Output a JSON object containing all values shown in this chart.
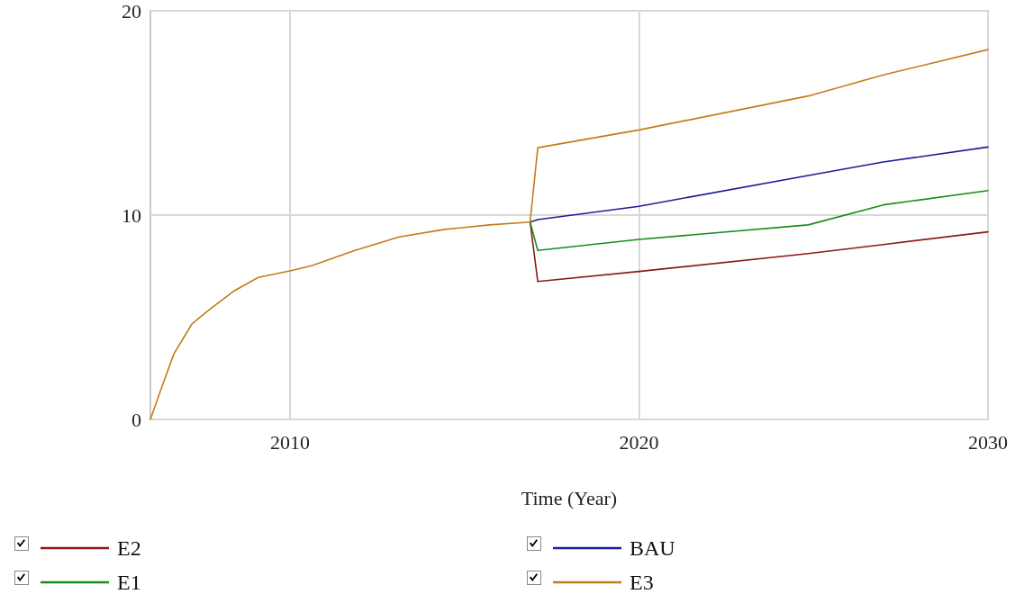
{
  "chart_data": {
    "type": "line",
    "xlabel": "Time (Year)",
    "xlim": [
      2006,
      2030
    ],
    "xticks": [
      2010,
      2020,
      2030
    ],
    "ylim": [
      0,
      20
    ],
    "yticks": [
      0,
      10,
      20
    ],
    "grid": true,
    "legend": "bottom",
    "marker": "none",
    "line_style": "solid",
    "series": [
      {
        "name": "E2",
        "color": "#8b1a1a",
        "x": [
          2016.88,
          2017.1,
          2020,
          2024.85,
          2027,
          2030
        ],
        "values": [
          9.66,
          6.75,
          7.24,
          8.12,
          8.56,
          9.18
        ]
      },
      {
        "name": "BAU",
        "color": "#1c1c9c",
        "x": [
          2016.88,
          2017.1,
          2020,
          2024.85,
          2027,
          2030
        ],
        "values": [
          9.66,
          9.78,
          10.43,
          11.94,
          12.6,
          13.33
        ]
      },
      {
        "name": "E1",
        "color": "#1a8c1a",
        "x": [
          2016.88,
          2017.1,
          2020,
          2024.85,
          2027,
          2030
        ],
        "values": [
          9.66,
          8.27,
          8.81,
          9.52,
          10.5,
          11.2
        ]
      },
      {
        "name": "E3",
        "color": "#c27c1a",
        "x": [
          2006,
          2006.33,
          2006.67,
          2007.19,
          2007.71,
          2008.4,
          2009.09,
          2010.03,
          2010.64,
          2011.84,
          2013.13,
          2014.43,
          2015.72,
          2016.88,
          2017.1,
          2020,
          2024.85,
          2027,
          2030
        ],
        "values": [
          0,
          1.6,
          3.2,
          4.67,
          5.4,
          6.29,
          6.95,
          7.28,
          7.53,
          8.26,
          8.93,
          9.3,
          9.52,
          9.66,
          13.3,
          14.17,
          15.83,
          16.86,
          18.1
        ]
      }
    ]
  }
}
